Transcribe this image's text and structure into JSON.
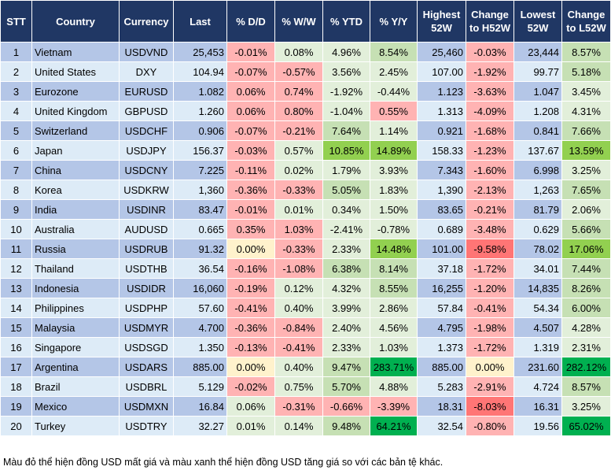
{
  "headers": [
    "STT",
    "Country",
    "Currency",
    "Last",
    "% D/D",
    "% W/W",
    "% YTD",
    "% Y/Y",
    "Highest 52W",
    "Change to H52W",
    "Lowest 52W",
    "Change to L52W"
  ],
  "colors": {
    "red": "#ffb3b3",
    "dark_red": "#ff7575",
    "yellow": "#fff2cc",
    "green_light": "#e2efda",
    "green_mid": "#c6e0b4",
    "green_bright": "#92d050",
    "green_dark": "#00b050",
    "header_bg": "#203764"
  },
  "rows": [
    {
      "stt": "1",
      "country": "Vietnam",
      "currency": "USDVND",
      "last": "25,453",
      "dd": "-0.01%",
      "ww": "0.08%",
      "ytd": "4.96%",
      "yy": "8.54%",
      "high": "25,460",
      "ch_high": "-0.03%",
      "low": "23,444",
      "ch_low": "8.57%",
      "tones": [
        "red",
        "green_light",
        "green_light",
        "green_mid",
        "red",
        "green_mid"
      ]
    },
    {
      "stt": "2",
      "country": "United States",
      "currency": "DXY",
      "last": "104.94",
      "dd": "-0.07%",
      "ww": "-0.57%",
      "ytd": "3.56%",
      "yy": "2.45%",
      "high": "107.00",
      "ch_high": "-1.92%",
      "low": "99.77",
      "ch_low": "5.18%",
      "tones": [
        "red",
        "red",
        "green_light",
        "green_light",
        "red",
        "green_mid"
      ]
    },
    {
      "stt": "3",
      "country": "Eurozone",
      "currency": "EURUSD",
      "last": "1.082",
      "dd": "0.06%",
      "ww": "0.74%",
      "ytd": "-1.92%",
      "yy": "-0.44%",
      "high": "1.123",
      "ch_high": "-3.63%",
      "low": "1.047",
      "ch_low": "3.45%",
      "tones": [
        "red",
        "red",
        "green_light",
        "green_light",
        "red",
        "green_light"
      ]
    },
    {
      "stt": "4",
      "country": "United Kingdom",
      "currency": "GBPUSD",
      "last": "1.260",
      "dd": "0.06%",
      "ww": "0.80%",
      "ytd": "-1.04%",
      "yy": "0.55%",
      "high": "1.313",
      "ch_high": "-4.09%",
      "low": "1.208",
      "ch_low": "4.31%",
      "tones": [
        "red",
        "red",
        "green_light",
        "red",
        "red",
        "green_light"
      ]
    },
    {
      "stt": "5",
      "country": "Switzerland",
      "currency": "USDCHF",
      "last": "0.906",
      "dd": "-0.07%",
      "ww": "-0.21%",
      "ytd": "7.64%",
      "yy": "1.14%",
      "high": "0.921",
      "ch_high": "-1.68%",
      "low": "0.841",
      "ch_low": "7.66%",
      "tones": [
        "red",
        "red",
        "green_mid",
        "green_light",
        "red",
        "green_mid"
      ]
    },
    {
      "stt": "6",
      "country": "Japan",
      "currency": "USDJPY",
      "last": "156.37",
      "dd": "-0.03%",
      "ww": "0.57%",
      "ytd": "10.85%",
      "yy": "14.89%",
      "high": "158.33",
      "ch_high": "-1.23%",
      "low": "137.67",
      "ch_low": "13.59%",
      "tones": [
        "red",
        "green_light",
        "green_bright",
        "green_bright",
        "red",
        "green_bright"
      ]
    },
    {
      "stt": "7",
      "country": "China",
      "currency": "USDCNY",
      "last": "7.225",
      "dd": "-0.11%",
      "ww": "0.02%",
      "ytd": "1.79%",
      "yy": "3.93%",
      "high": "7.343",
      "ch_high": "-1.60%",
      "low": "6.998",
      "ch_low": "3.25%",
      "tones": [
        "red",
        "green_light",
        "green_light",
        "green_light",
        "red",
        "green_light"
      ]
    },
    {
      "stt": "8",
      "country": "Korea",
      "currency": "USDKRW",
      "last": "1,360",
      "dd": "-0.36%",
      "ww": "-0.33%",
      "ytd": "5.05%",
      "yy": "1.83%",
      "high": "1,390",
      "ch_high": "-2.13%",
      "low": "1,263",
      "ch_low": "7.65%",
      "tones": [
        "red",
        "red",
        "green_mid",
        "green_light",
        "red",
        "green_mid"
      ]
    },
    {
      "stt": "9",
      "country": "India",
      "currency": "USDINR",
      "last": "83.47",
      "dd": "-0.01%",
      "ww": "0.01%",
      "ytd": "0.34%",
      "yy": "1.50%",
      "high": "83.65",
      "ch_high": "-0.21%",
      "low": "81.79",
      "ch_low": "2.06%",
      "tones": [
        "red",
        "green_light",
        "green_light",
        "green_light",
        "red",
        "green_light"
      ]
    },
    {
      "stt": "10",
      "country": "Australia",
      "currency": "AUDUSD",
      "last": "0.665",
      "dd": "0.35%",
      "ww": "1.03%",
      "ytd": "-2.41%",
      "yy": "-0.78%",
      "high": "0.689",
      "ch_high": "-3.48%",
      "low": "0.629",
      "ch_low": "5.66%",
      "tones": [
        "red",
        "red",
        "green_light",
        "green_light",
        "red",
        "green_mid"
      ]
    },
    {
      "stt": "11",
      "country": "Russia",
      "currency": "USDRUB",
      "last": "91.32",
      "dd": "0.00%",
      "ww": "-0.33%",
      "ytd": "2.33%",
      "yy": "14.48%",
      "high": "101.00",
      "ch_high": "-9.58%",
      "low": "78.02",
      "ch_low": "17.06%",
      "tones": [
        "yellow",
        "red",
        "green_light",
        "green_bright",
        "dark_red",
        "green_bright"
      ]
    },
    {
      "stt": "12",
      "country": "Thailand",
      "currency": "USDTHB",
      "last": "36.54",
      "dd": "-0.16%",
      "ww": "-1.08%",
      "ytd": "6.38%",
      "yy": "8.14%",
      "high": "37.18",
      "ch_high": "-1.72%",
      "low": "34.01",
      "ch_low": "7.44%",
      "tones": [
        "red",
        "red",
        "green_mid",
        "green_mid",
        "red",
        "green_mid"
      ]
    },
    {
      "stt": "13",
      "country": "Indonesia",
      "currency": "USDIDR",
      "last": "16,060",
      "dd": "-0.19%",
      "ww": "0.12%",
      "ytd": "4.32%",
      "yy": "8.55%",
      "high": "16,255",
      "ch_high": "-1.20%",
      "low": "14,835",
      "ch_low": "8.26%",
      "tones": [
        "red",
        "green_light",
        "green_light",
        "green_mid",
        "red",
        "green_mid"
      ]
    },
    {
      "stt": "14",
      "country": "Philippines",
      "currency": "USDPHP",
      "last": "57.60",
      "dd": "-0.41%",
      "ww": "0.40%",
      "ytd": "3.99%",
      "yy": "2.86%",
      "high": "57.84",
      "ch_high": "-0.41%",
      "low": "54.34",
      "ch_low": "6.00%",
      "tones": [
        "red",
        "green_light",
        "green_light",
        "green_light",
        "red",
        "green_mid"
      ]
    },
    {
      "stt": "15",
      "country": "Malaysia",
      "currency": "USDMYR",
      "last": "4.700",
      "dd": "-0.36%",
      "ww": "-0.84%",
      "ytd": "2.40%",
      "yy": "4.56%",
      "high": "4.795",
      "ch_high": "-1.98%",
      "low": "4.507",
      "ch_low": "4.28%",
      "tones": [
        "red",
        "red",
        "green_light",
        "green_light",
        "red",
        "green_light"
      ]
    },
    {
      "stt": "16",
      "country": "Singapore",
      "currency": "USDSGD",
      "last": "1.350",
      "dd": "-0.13%",
      "ww": "-0.41%",
      "ytd": "2.33%",
      "yy": "1.03%",
      "high": "1.373",
      "ch_high": "-1.72%",
      "low": "1.319",
      "ch_low": "2.31%",
      "tones": [
        "red",
        "red",
        "green_light",
        "green_light",
        "red",
        "green_light"
      ]
    },
    {
      "stt": "17",
      "country": "Argentina",
      "currency": "USDARS",
      "last": "885.00",
      "dd": "0.00%",
      "ww": "0.40%",
      "ytd": "9.47%",
      "yy": "283.71%",
      "high": "885.00",
      "ch_high": "0.00%",
      "low": "231.60",
      "ch_low": "282.12%",
      "tones": [
        "yellow",
        "green_light",
        "green_mid",
        "green_dark",
        "yellow",
        "green_dark"
      ]
    },
    {
      "stt": "18",
      "country": "Brazil",
      "currency": "USDBRL",
      "last": "5.129",
      "dd": "-0.02%",
      "ww": "0.75%",
      "ytd": "5.70%",
      "yy": "4.88%",
      "high": "5.283",
      "ch_high": "-2.91%",
      "low": "4.724",
      "ch_low": "8.57%",
      "tones": [
        "red",
        "green_light",
        "green_mid",
        "green_light",
        "red",
        "green_mid"
      ]
    },
    {
      "stt": "19",
      "country": "Mexico",
      "currency": "USDMXN",
      "last": "16.84",
      "dd": "0.06%",
      "ww": "-0.31%",
      "ytd": "-0.66%",
      "yy": "-3.39%",
      "high": "18.31",
      "ch_high": "-8.03%",
      "low": "16.31",
      "ch_low": "3.25%",
      "tones": [
        "green_light",
        "red",
        "red",
        "red",
        "dark_red",
        "green_light"
      ]
    },
    {
      "stt": "20",
      "country": "Turkey",
      "currency": "USDTRY",
      "last": "32.27",
      "dd": "0.01%",
      "ww": "0.14%",
      "ytd": "9.48%",
      "yy": "64.21%",
      "high": "32.54",
      "ch_high": "-0.80%",
      "low": "19.56",
      "ch_low": "65.02%",
      "tones": [
        "green_light",
        "green_light",
        "green_mid",
        "green_dark",
        "red",
        "green_dark"
      ]
    }
  ],
  "footnote": "Màu đỏ thể hiện đồng USD mất giá và màu xanh thể hiện đồng USD tăng giá so với các bản tệ khác."
}
